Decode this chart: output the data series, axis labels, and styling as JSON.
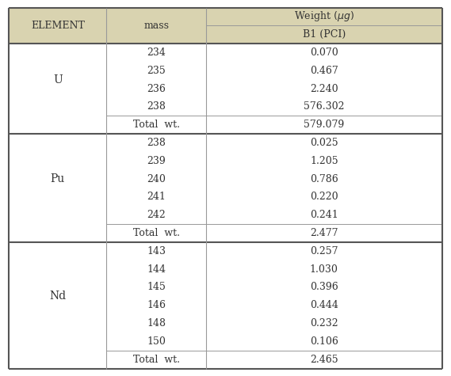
{
  "header_bg": "#d9d3b0",
  "cell_bg": "#ffffff",
  "border_color": "#999999",
  "thick_border_color": "#555555",
  "sections": [
    {
      "element": "U",
      "rows": [
        {
          "mass": "234",
          "value": "0.070"
        },
        {
          "mass": "235",
          "value": "0.467"
        },
        {
          "mass": "236",
          "value": "2.240"
        },
        {
          "mass": "238",
          "value": "576.302"
        }
      ],
      "total": "579.079"
    },
    {
      "element": "Pu",
      "rows": [
        {
          "mass": "238",
          "value": "0.025"
        },
        {
          "mass": "239",
          "value": "1.205"
        },
        {
          "mass": "240",
          "value": "0.786"
        },
        {
          "mass": "241",
          "value": "0.220"
        },
        {
          "mass": "242",
          "value": "0.241"
        }
      ],
      "total": "2.477"
    },
    {
      "element": "Nd",
      "rows": [
        {
          "mass": "143",
          "value": "0.257"
        },
        {
          "mass": "144",
          "value": "1.030"
        },
        {
          "mass": "145",
          "value": "0.396"
        },
        {
          "mass": "146",
          "value": "0.444"
        },
        {
          "mass": "148",
          "value": "0.232"
        },
        {
          "mass": "150",
          "value": "0.106"
        }
      ],
      "total": "2.465"
    }
  ],
  "figsize": [
    5.69,
    4.75
  ],
  "dpi": 100
}
